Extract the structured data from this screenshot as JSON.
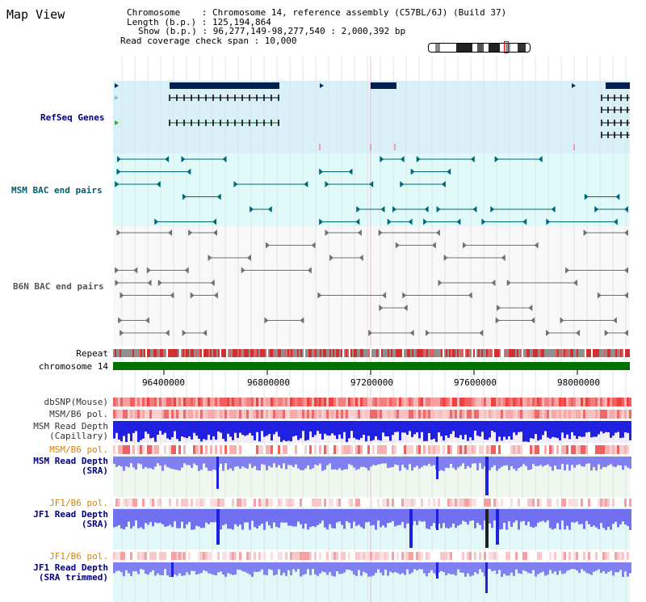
{
  "title": "Map View",
  "info": {
    "chromosome_key": "Chromosome",
    "chromosome_val": ": Chromosome 14, reference assembly (C57BL/6J) (Build 37)",
    "length_key": "Length (b.p.)",
    "length_val": ": 125,194,864",
    "show_key": "Show (b.p.)",
    "show_val": ": 96,277,149-98,277,540 : 2,000,392 bp",
    "read_coverage": "Read coverage check span : 10,000"
  },
  "tracks": {
    "refseq": "RefSeq Genes",
    "msm_bac": "MSM BAC end pairs",
    "b6n_bac": "B6N BAC end pairs",
    "repeat": "Repeat",
    "chromosome": "chromosome 14",
    "dbsnp": "dbSNP(Mouse)",
    "msm_b6_pol_1": "MSM/B6 pol.",
    "msm_read_depth_cap_1": "MSM Read Depth",
    "msm_read_depth_cap_2": "(Capillary)",
    "msm_b6_pol_2": "MSM/B6 pol.",
    "msm_read_depth_sra_1": "MSM Read Depth",
    "msm_read_depth_sra_2": "(SRA)",
    "jf1_b6_pol_1": "JF1/B6 pol.",
    "jf1_read_depth_sra_1": "JF1 Read Depth",
    "jf1_read_depth_sra_2": "(SRA)",
    "jf1_b6_pol_2": "JF1/B6 pol.",
    "jf1_read_depth_trim_1": "JF1 Read Depth",
    "jf1_read_depth_trim_2": "(SRA trimmed)"
  },
  "axis": {
    "ticks": [
      "96400000",
      "96800000",
      "97200000",
      "97600000",
      "98000000"
    ]
  },
  "colors": {
    "refseq_bg": "#d8f0f8",
    "msm_bg": "#e0fafa",
    "b6n_bg": "#f8f8f8",
    "chromosome_bar": "#007000",
    "snp": "#f06060",
    "depth_blue": "#2020e0",
    "depth_light": "#7070f0",
    "label_navy": "#000080",
    "label_orange": "#e08000",
    "label_teal": "#006070"
  }
}
